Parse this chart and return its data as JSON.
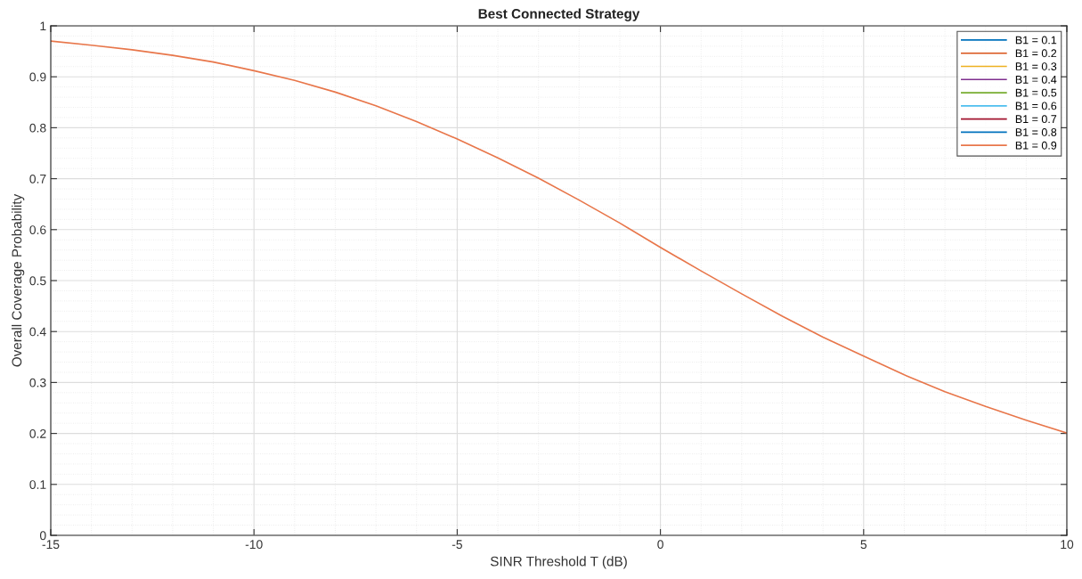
{
  "chart_data": {
    "type": "line",
    "title": "Best Connected Strategy",
    "xlabel": "SINR Threshold T (dB)",
    "ylabel": "Overall Coverage Probability",
    "x": [
      -15,
      -14,
      -13,
      -12,
      -11,
      -10,
      -9,
      -8,
      -7,
      -6,
      -5,
      -4,
      -3,
      -2,
      -1,
      0,
      1,
      2,
      3,
      4,
      5,
      6,
      7,
      8,
      9,
      10
    ],
    "series": [
      {
        "name": "B1 = 0.1",
        "color": "#0072bd",
        "values": [
          null,
          null,
          null,
          null,
          null,
          null,
          null,
          null,
          null,
          null,
          null,
          null,
          null,
          null,
          null,
          null,
          null,
          null,
          null,
          null,
          null,
          null,
          null,
          null,
          null,
          null
        ]
      },
      {
        "name": "B1 = 0.2",
        "color": "#d95319",
        "values": [
          null,
          null,
          null,
          null,
          null,
          null,
          null,
          null,
          null,
          null,
          null,
          null,
          null,
          null,
          null,
          null,
          null,
          null,
          null,
          null,
          null,
          null,
          null,
          null,
          null,
          null
        ]
      },
      {
        "name": "B1 = 0.3",
        "color": "#edb120",
        "values": [
          null,
          null,
          null,
          null,
          null,
          null,
          null,
          null,
          null,
          null,
          null,
          null,
          null,
          null,
          null,
          null,
          null,
          null,
          null,
          null,
          null,
          null,
          null,
          null,
          null,
          null
        ]
      },
      {
        "name": "B1 = 0.4",
        "color": "#7e2f8e",
        "values": [
          null,
          null,
          null,
          null,
          null,
          null,
          null,
          null,
          null,
          null,
          null,
          null,
          null,
          null,
          null,
          null,
          null,
          null,
          null,
          null,
          null,
          null,
          null,
          null,
          null,
          null
        ]
      },
      {
        "name": "B1 = 0.5",
        "color": "#77ac30",
        "values": [
          null,
          null,
          null,
          null,
          null,
          null,
          null,
          null,
          null,
          null,
          null,
          null,
          null,
          null,
          null,
          null,
          null,
          null,
          null,
          null,
          null,
          null,
          null,
          null,
          null,
          null
        ]
      },
      {
        "name": "B1 = 0.6",
        "color": "#4dbeee",
        "values": [
          null,
          null,
          null,
          null,
          null,
          null,
          null,
          null,
          null,
          null,
          null,
          null,
          null,
          null,
          null,
          null,
          null,
          null,
          null,
          null,
          null,
          null,
          null,
          null,
          null,
          null
        ]
      },
      {
        "name": "B1 = 0.7",
        "color": "#a2142f",
        "values": [
          null,
          null,
          null,
          null,
          null,
          null,
          null,
          null,
          null,
          null,
          null,
          null,
          null,
          null,
          null,
          null,
          null,
          null,
          null,
          null,
          null,
          null,
          null,
          null,
          null,
          null
        ]
      },
      {
        "name": "B1 = 0.8",
        "color": "#0072bd",
        "values": [
          null,
          null,
          null,
          null,
          null,
          null,
          null,
          null,
          null,
          null,
          null,
          null,
          null,
          null,
          null,
          null,
          null,
          null,
          null,
          null,
          null,
          null,
          null,
          null,
          null,
          null
        ]
      },
      {
        "name": "B1 = 0.9",
        "color": "#e8764a",
        "values": [
          0.97,
          0.962,
          0.953,
          0.942,
          0.929,
          0.912,
          0.893,
          0.87,
          0.843,
          0.812,
          0.778,
          0.741,
          0.701,
          0.658,
          0.613,
          0.565,
          0.519,
          0.474,
          0.43,
          0.389,
          0.352,
          0.315,
          0.282,
          0.253,
          0.226,
          0.201
        ]
      }
    ],
    "xlim": [
      -15,
      10
    ],
    "xticks": [
      -15,
      -10,
      -5,
      0,
      5,
      10
    ],
    "ylim": [
      0,
      1
    ],
    "yticks": [
      0,
      0.1,
      0.2,
      0.3,
      0.4,
      0.5,
      0.6,
      0.7,
      0.8,
      0.9,
      1
    ],
    "grid": true,
    "legend": "top right",
    "marker": "none",
    "line_style": "solid"
  }
}
